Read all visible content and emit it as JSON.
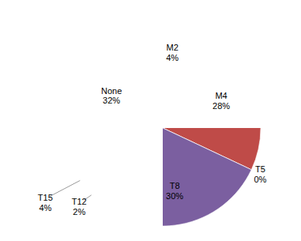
{
  "chart_data": {
    "type": "pie",
    "categories": [
      "M2",
      "M4",
      "T5",
      "T8",
      "T12",
      "T15",
      "None"
    ],
    "values": [
      4,
      28,
      0,
      30,
      2,
      4,
      32
    ],
    "value_labels": [
      "4%",
      "28%",
      "0%",
      "30%",
      "2%",
      "4%",
      "32%"
    ],
    "colors": [
      "#4674b0",
      "#bf4b48",
      "#9bbb59",
      "#7b5fa0",
      "#4bacc6",
      "#f0883a",
      "#9dafd8"
    ],
    "data_labels": true
  }
}
